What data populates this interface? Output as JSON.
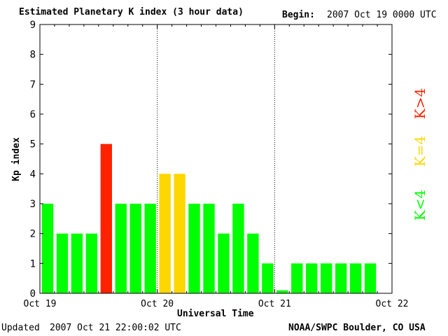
{
  "header": {
    "title": "Estimated Planetary K index (3 hour data)",
    "begin_label": "Begin:",
    "begin_value": "2007 Oct 19 0000 UTC"
  },
  "footer": {
    "updated_label": "Updated",
    "updated_value": "2007 Oct 21 22:00:02 UTC",
    "source": "NOAA/SWPC Boulder, CO USA"
  },
  "legend": {
    "low": "K<4",
    "mid": "K=4",
    "high": "K>4"
  },
  "colors": {
    "low": "#00ff00",
    "mid": "#ffd700",
    "high": "#ff2200"
  },
  "chart_data": {
    "type": "bar",
    "title": "Estimated Planetary K index (3 hour data)",
    "xlabel": "Universal Time",
    "ylabel": "Kp index",
    "ylim": [
      0,
      9
    ],
    "yticks": [
      "0",
      "1",
      "2",
      "3",
      "4",
      "5",
      "6",
      "7",
      "8",
      "9"
    ],
    "xticks": [
      "Oct 19",
      "Oct 20",
      "Oct 21",
      "Oct 22"
    ],
    "interval_hours": 3,
    "values": [
      3,
      2,
      2,
      2,
      5,
      3,
      3,
      3,
      4,
      4,
      3,
      3,
      2,
      3,
      2,
      1,
      0.1,
      1,
      1,
      1,
      1,
      1,
      1
    ],
    "thresholds": {
      "mid": 4
    },
    "grid": "vertical dotted lines at day boundaries"
  }
}
